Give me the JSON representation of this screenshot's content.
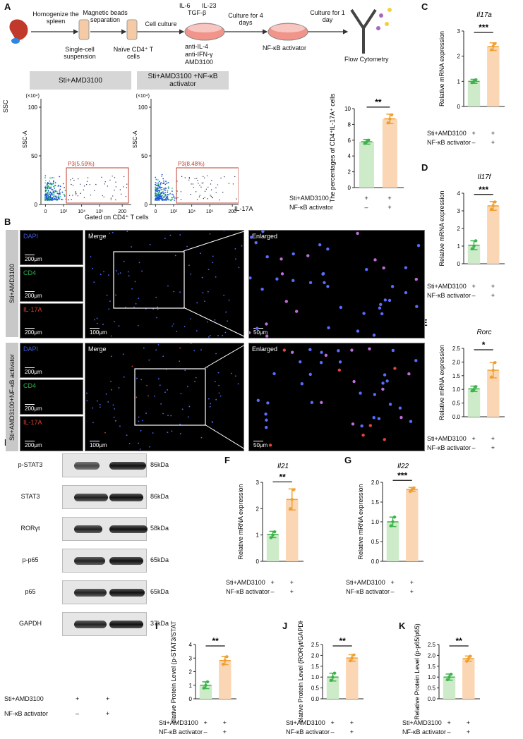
{
  "panels": {
    "A": "A",
    "B": "B",
    "C": "C",
    "D": "D",
    "E": "E",
    "F": "F",
    "G": "G",
    "H": "H",
    "I": "I",
    "J": "J",
    "K": "K"
  },
  "workflow": {
    "steps": [
      "Homogenize the spleen",
      "Magnetic beads separation",
      "Cell culture",
      "Culture for 4 days",
      "Culture for 1 day"
    ],
    "labels": [
      "Single-cell suspension",
      "Naïve CD4⁺ T cells",
      "NF-κB activator",
      "Flow Cytometry"
    ],
    "reagents": [
      "IL-6",
      "IL-23",
      "TGF-β",
      "anti-IL-4",
      "anti-IFN-γ",
      "AMD3100"
    ]
  },
  "flow": {
    "headers": [
      "Sti+AMD3100",
      "Sti+AMD3100 +NF-κB activator"
    ],
    "ssc_label": "SSC",
    "ssc_unit": "(×10⁴)",
    "ssc_a": "SSC-A",
    "gates": [
      "P3(5.59%)",
      "P3(8.48%)"
    ],
    "yticks": [
      "100",
      "50",
      "0"
    ],
    "xticks": [
      "0",
      "10²",
      "10⁴",
      "10⁵",
      "200"
    ],
    "x_label": "IL-17A",
    "footer": "Gated on CD4⁺ T cells"
  },
  "if_panel": {
    "groups": [
      "Sti+AMD3100",
      "Sti+AMD3100+NF-κB activator"
    ],
    "channels": [
      "DAPI",
      "CD4",
      "IL-17A"
    ],
    "merge": "Merge",
    "enlarged": "Enlarged",
    "scales": [
      "200μm",
      "100μm",
      "50μm"
    ],
    "channel_colors": {
      "DAPI": "#3a5bd9",
      "CD4": "#2bb24c",
      "IL-17A": "#d9402b"
    }
  },
  "blot": {
    "proteins": [
      "p-STAT3",
      "STAT3",
      "RORγt",
      "p-p65",
      "p65",
      "GAPDH"
    ],
    "kda": [
      "86kDa",
      "86kDa",
      "58kDa",
      "65kDa",
      "65kDa",
      "37kDa"
    ],
    "row1_label": "Sti+AMD3100",
    "row2_label": "NF-κB activator",
    "row1_marks": [
      "+",
      "+"
    ],
    "row2_marks": [
      "–",
      "+"
    ]
  },
  "group_rows": {
    "row1_label": "Sti+AMD3100",
    "row2_label": "NF-κB activator",
    "row1_marks": [
      "+",
      "+"
    ],
    "row2_marks": [
      "–",
      "+"
    ]
  },
  "colors": {
    "green_bar": "#cdebc8",
    "green_err": "#3cb44b",
    "orange_bar": "#fbd6b4",
    "orange_err": "#f0a030"
  },
  "chart_data": [
    {
      "id": "A-bar",
      "type": "bar",
      "ylabel": "The percentages of CD4⁺IL-17A⁺ cells",
      "ylim": [
        0,
        10
      ],
      "yticks": [
        0,
        2,
        4,
        6,
        8,
        10
      ],
      "values": [
        5.8,
        8.7
      ],
      "errors": [
        0.3,
        0.6
      ],
      "points": [
        [
          5.6,
          5.8,
          6.0
        ],
        [
          8.2,
          8.7,
          9.2
        ]
      ],
      "sig": "**"
    },
    {
      "id": "C",
      "type": "bar",
      "title": "Il17a",
      "ylabel": "Relative mRNA expression",
      "ylim": [
        0,
        3
      ],
      "yticks": [
        0,
        1,
        2,
        3
      ],
      "values": [
        1.0,
        2.38
      ],
      "errors": [
        0.08,
        0.15
      ],
      "points": [
        [
          0.95,
          1.0,
          1.06
        ],
        [
          2.25,
          2.4,
          2.5
        ]
      ],
      "sig": "***"
    },
    {
      "id": "D",
      "type": "bar",
      "title": "Il17f",
      "ylabel": "Relative mRNA expression",
      "ylim": [
        0,
        4
      ],
      "yticks": [
        0,
        1,
        2,
        3,
        4
      ],
      "values": [
        1.05,
        3.28
      ],
      "errors": [
        0.25,
        0.25
      ],
      "points": [
        [
          0.85,
          1.0,
          1.3
        ],
        [
          3.1,
          3.3,
          3.5
        ]
      ],
      "sig": "***"
    },
    {
      "id": "E",
      "type": "bar",
      "title": "Rorc",
      "ylabel": "Relative mRNA expression",
      "ylim": [
        0,
        2.5
      ],
      "yticks": [
        0,
        0.5,
        1.0,
        1.5,
        2.0,
        2.5
      ],
      "values": [
        1.02,
        1.7
      ],
      "errors": [
        0.1,
        0.28
      ],
      "points": [
        [
          0.95,
          1.0,
          1.1
        ],
        [
          1.45,
          1.7,
          1.98
        ]
      ],
      "sig": "*"
    },
    {
      "id": "F",
      "type": "bar",
      "title": "Il21",
      "ylabel": "Relative mRNA expression",
      "ylim": [
        0,
        3
      ],
      "yticks": [
        0,
        1,
        2,
        3
      ],
      "values": [
        1.02,
        2.35
      ],
      "errors": [
        0.12,
        0.4
      ],
      "points": [
        [
          0.9,
          1.0,
          1.12
        ],
        [
          2.0,
          2.35,
          2.72
        ]
      ],
      "sig": "**"
    },
    {
      "id": "G",
      "type": "bar",
      "title": "Il22",
      "ylabel": "Relative mRNA expression",
      "ylim": [
        0,
        2.0
      ],
      "yticks": [
        0,
        0.5,
        1.0,
        1.5,
        2.0
      ],
      "values": [
        1.0,
        1.82
      ],
      "errors": [
        0.12,
        0.05
      ],
      "points": [
        [
          0.9,
          1.0,
          1.12
        ],
        [
          1.77,
          1.82,
          1.86
        ]
      ],
      "sig": "***"
    },
    {
      "id": "I",
      "type": "bar",
      "ylabel": "Relative Protein Level (p-STAT3/STAT3)",
      "ylim": [
        0,
        4
      ],
      "yticks": [
        0,
        1,
        2,
        3,
        4
      ],
      "values": [
        1.0,
        2.82
      ],
      "errors": [
        0.25,
        0.3
      ],
      "points": [
        [
          0.8,
          1.0,
          1.25
        ],
        [
          2.55,
          2.82,
          3.1
        ]
      ],
      "sig": "**"
    },
    {
      "id": "J",
      "type": "bar",
      "ylabel": "Relative Protein Level (RORγt/GAPDH)",
      "ylim": [
        0,
        2.5
      ],
      "yticks": [
        0,
        0.5,
        1.0,
        1.5,
        2.0,
        2.5
      ],
      "values": [
        1.0,
        1.88
      ],
      "errors": [
        0.18,
        0.15
      ],
      "points": [
        [
          0.85,
          1.0,
          1.18
        ],
        [
          1.75,
          1.88,
          2.02
        ]
      ],
      "sig": "**"
    },
    {
      "id": "K",
      "type": "bar",
      "ylabel": "Relative Protein Level (p-p65/p65)",
      "ylim": [
        0,
        2.5
      ],
      "yticks": [
        0,
        0.5,
        1.0,
        1.5,
        2.0,
        2.5
      ],
      "values": [
        1.0,
        1.85
      ],
      "errors": [
        0.14,
        0.12
      ],
      "points": [
        [
          0.88,
          1.0,
          1.13
        ],
        [
          1.73,
          1.85,
          1.96
        ]
      ],
      "sig": "**"
    }
  ]
}
